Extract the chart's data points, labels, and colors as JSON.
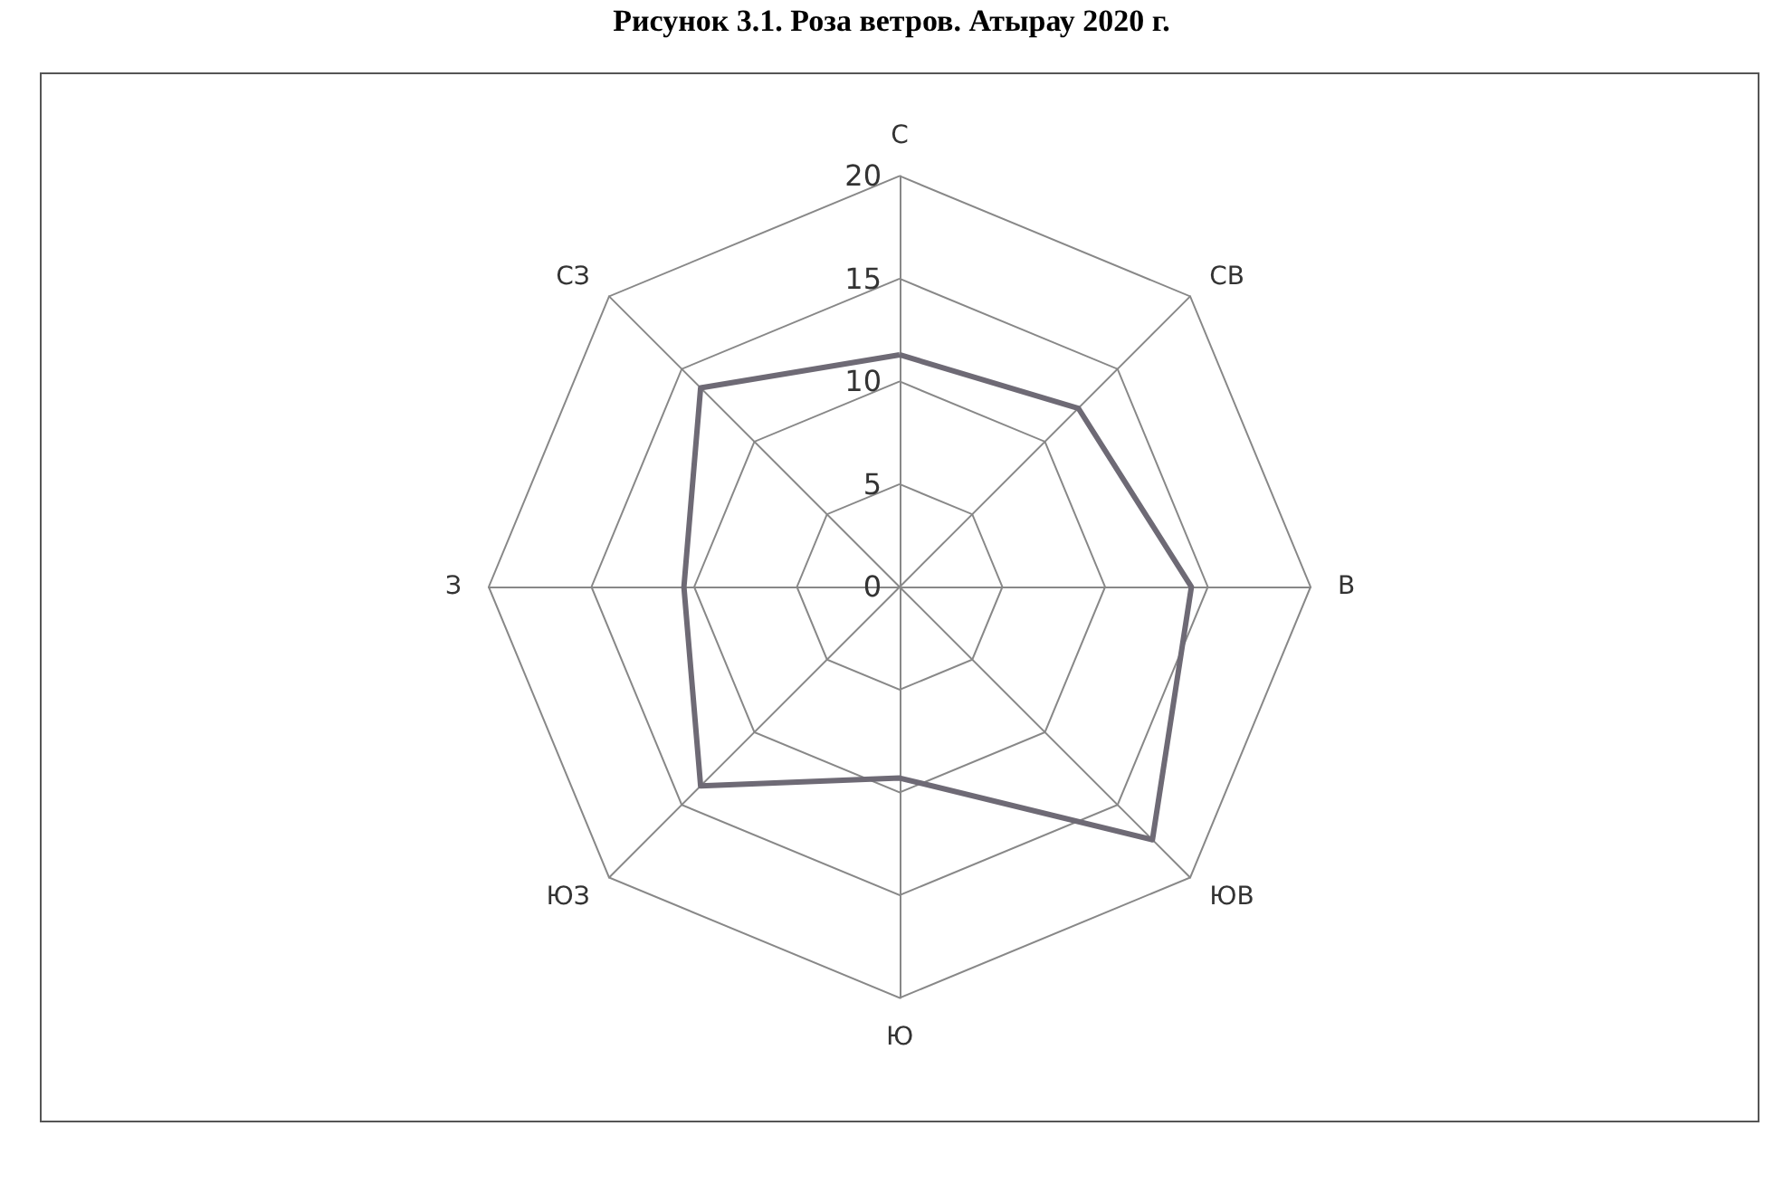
{
  "chart_data": {
    "type": "radar",
    "title": "Рисунок 3.1. Роза ветров. Атырау 2020 г.",
    "categories": [
      "С",
      "СВ",
      "В",
      "ЮВ",
      "Ю",
      "ЮЗ",
      "З",
      "СЗ"
    ],
    "series": [
      {
        "color": "#6e6a75",
        "values": [
          11.3,
          12.3,
          14.2,
          17.4,
          9.3,
          13.7,
          10.5,
          13.7
        ]
      }
    ],
    "ylim": [
      0,
      20
    ],
    "yticks": [
      0,
      5,
      10,
      15,
      20
    ],
    "grid": true,
    "marker": "none",
    "line_style": "solid"
  }
}
